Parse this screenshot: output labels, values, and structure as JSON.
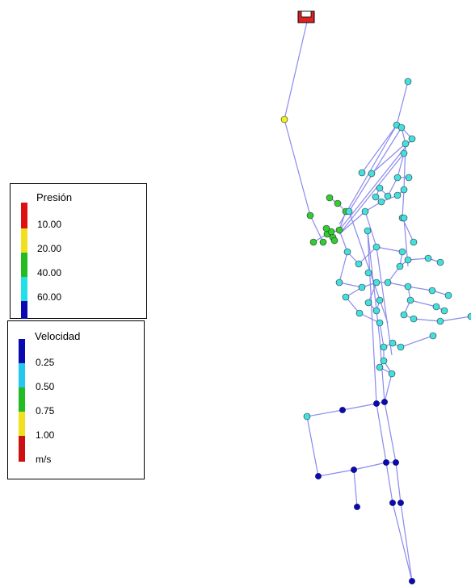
{
  "pressure_legend": {
    "title": "Presión",
    "labels": [
      "10.00",
      "20.00",
      "40.00",
      "60.00"
    ],
    "colors": [
      "#dd1111",
      "#f0e020",
      "#22bb22",
      "#22e0e8",
      "#0a0ab0"
    ]
  },
  "velocity_legend": {
    "title": "Velocidad",
    "labels": [
      "0.25",
      "0.50",
      "0.75",
      "1.00"
    ],
    "unit": "m/s",
    "colors": [
      "#0a0ab0",
      "#22c8ee",
      "#22bb22",
      "#f0e020",
      "#cc1111"
    ]
  },
  "network": {
    "pipe_color": "#8a8af0",
    "node_colors": {
      "yellow": "#f0f020",
      "green": "#33cc33",
      "cyan": "#44e0e0",
      "blue": "#0a0ab0"
    },
    "reservoir_color": "#dd2222"
  }
}
